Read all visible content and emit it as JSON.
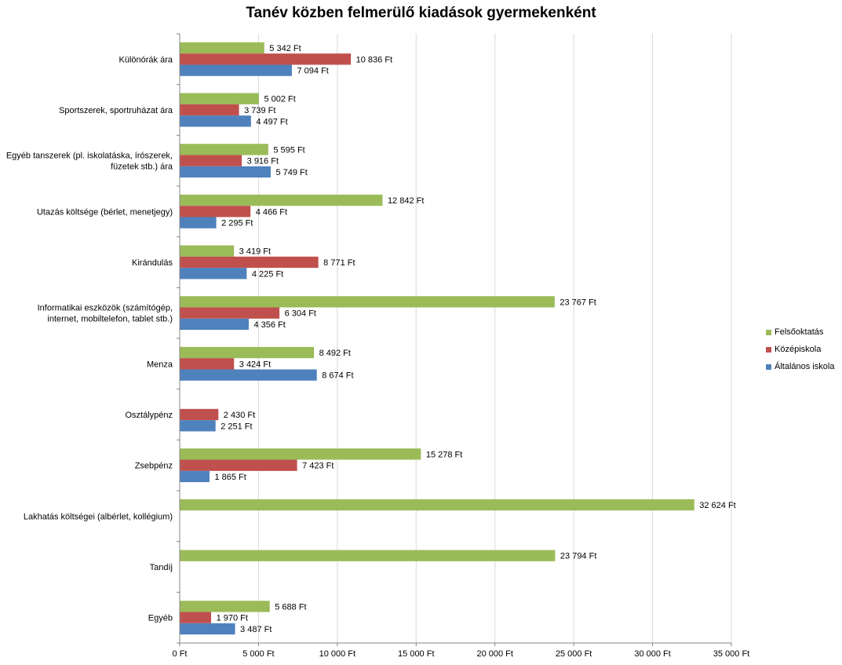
{
  "chart_data": {
    "type": "bar",
    "orientation": "horizontal",
    "title": "Tanév közben felmerülő kiadások gyermekenként",
    "xlabel": "",
    "ylabel": "",
    "xlim": [
      0,
      35000
    ],
    "x_ticks": [
      "0 Ft",
      "5 000 Ft",
      "10 000 Ft",
      "15 000 Ft",
      "20 000 Ft",
      "25 000 Ft",
      "30 000 Ft",
      "35 000 Ft"
    ],
    "grid": true,
    "legend_position": "right",
    "categories": [
      "Különórák ára",
      "Sportszerek, sportruházat ára",
      "Egyéb tanszerek (pl. iskolatáska, írószerek, füzetek stb.) ára",
      "Utazás költsége (bérlet, menetjegy)",
      "Kirándulás",
      "Informatikai eszközök (számítógép, internet, mobiltelefon, tablet stb.)",
      "Menza",
      "Osztálypénz",
      "Zsebpénz",
      "Lakhatás költségei (albérlet, kollégium)",
      "Tandíj",
      "Egyéb"
    ],
    "category_label_lines": [
      [
        "Különórák ára"
      ],
      [
        "Sportszerek, sportruházat ára"
      ],
      [
        "Egyéb tanszerek (pl. iskolatáska, írószerek,",
        "füzetek stb.) ára"
      ],
      [
        "Utazás költsége (bérlet, menetjegy)"
      ],
      [
        "Kirándulás"
      ],
      [
        "Informatikai eszközök (számítógép,",
        "internet, mobiltelefon, tablet stb.)"
      ],
      [
        "Menza"
      ],
      [
        "Osztálypénz"
      ],
      [
        "Zsebpénz"
      ],
      [
        "Lakhatás költségei (albérlet, kollégium)"
      ],
      [
        "Tandíj"
      ],
      [
        "Egyéb"
      ]
    ],
    "series": [
      {
        "name": "Felsőoktatás",
        "color": "#9BBB59",
        "values": [
          5342,
          5002,
          5595,
          12842,
          3419,
          23767,
          8492,
          null,
          15278,
          32624,
          23794,
          5688
        ],
        "labels": [
          "5 342 Ft",
          "5 002 Ft",
          "5 595 Ft",
          "12 842 Ft",
          "3 419 Ft",
          "23 767 Ft",
          "8 492 Ft",
          null,
          "15 278 Ft",
          "32 624 Ft",
          "23 794 Ft",
          "5 688 Ft"
        ]
      },
      {
        "name": "Középiskola",
        "color": "#C0504D",
        "values": [
          10836,
          3739,
          3916,
          4466,
          8771,
          6304,
          3424,
          2430,
          7423,
          null,
          null,
          1970
        ],
        "labels": [
          "10 836 Ft",
          "3 739 Ft",
          "3 916 Ft",
          "4 466 Ft",
          "8 771 Ft",
          "6 304 Ft",
          "3 424 Ft",
          "2 430 Ft",
          "7 423 Ft",
          null,
          null,
          "1 970 Ft"
        ]
      },
      {
        "name": "Általános iskola",
        "color": "#4F81BD",
        "values": [
          7094,
          4497,
          5749,
          2295,
          4225,
          4356,
          8674,
          2251,
          1865,
          null,
          null,
          3487
        ],
        "labels": [
          "7 094 Ft",
          "4 497 Ft",
          "5 749 Ft",
          "2 295 Ft",
          "4 225 Ft",
          "4 356 Ft",
          "8 674 Ft",
          "2 251 Ft",
          "1 865 Ft",
          null,
          null,
          "3 487 Ft"
        ]
      }
    ],
    "legend_order": [
      0,
      1,
      2
    ]
  }
}
